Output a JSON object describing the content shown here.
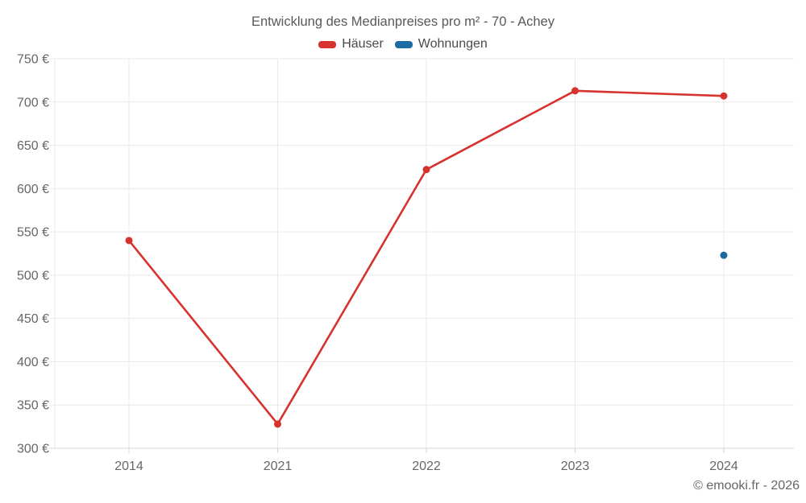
{
  "chart_data": {
    "type": "line",
    "title": "Entwicklung des Medianpreises pro m² - 70 - Achey",
    "categories": [
      "2014",
      "2021",
      "2022",
      "2023",
      "2024"
    ],
    "series": [
      {
        "name": "Häuser",
        "color": "#d7322e",
        "values": [
          540,
          328,
          622,
          713,
          707
        ]
      },
      {
        "name": "Wohnungen",
        "color": "#1a6ca3",
        "values": [
          null,
          null,
          null,
          null,
          523
        ]
      }
    ],
    "ylim": [
      300,
      750
    ],
    "ytick_step": 50,
    "ytick_suffix": " €",
    "grid": true,
    "legend_position": "top",
    "axis_text_color": "#666666",
    "grid_color": "#e9e9e9",
    "axis_line_color": "#d4d4d4"
  },
  "footer": {
    "copyright": "© emooki.fr - 2026"
  }
}
